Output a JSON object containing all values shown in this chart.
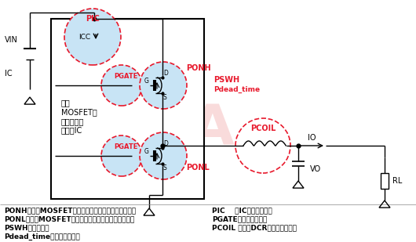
{
  "bg_color": "#ffffff",
  "red_circle_color": "#e8192c",
  "blue_fill_color": "#c8e4f5",
  "watermark_color": "#f5b8b8",
  "legend_left": [
    "PONH：高边MOSFET导通时的导通电阻带来的传导损耗",
    "PONL：低边MOSFET导通时的导通电阻带来的传导损耗",
    "PSWH：开关损耗",
    "Pdead_time：死区时间损耗"
  ],
  "legend_right": [
    "PIC    ：IC自身功率损耗",
    "PGATE：栅极电荷损耗",
    "PCOIL ：电感DCR带来的传导损耗"
  ],
  "ic_text": "内置\nMOSFET的\n同步整流型\n转换器IC"
}
